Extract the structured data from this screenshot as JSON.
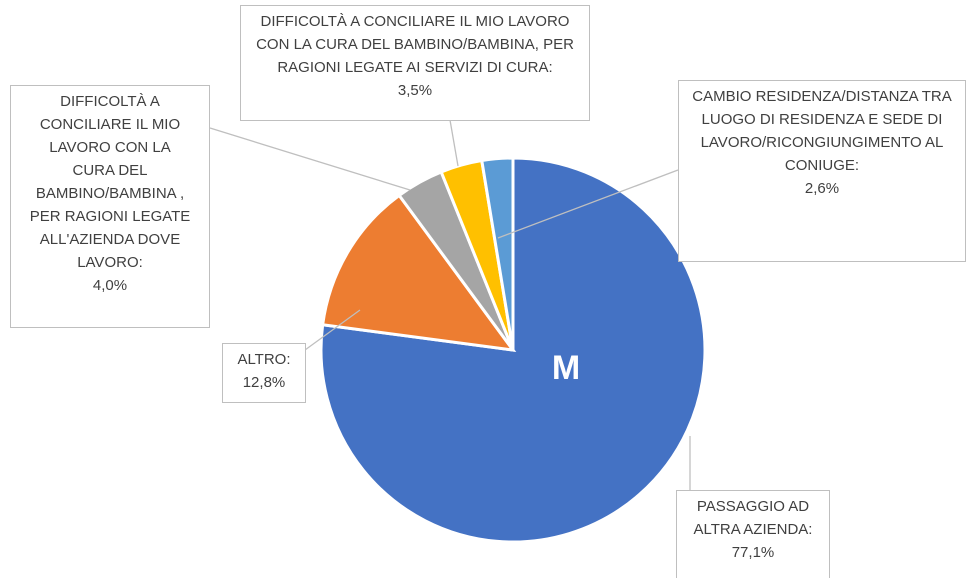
{
  "chart_data": {
    "type": "pie",
    "annotation": "M",
    "categories": [
      "PASSAGGIO AD ALTRA AZIENDA:",
      "ALTRO:",
      "DIFFICOLTÀ A CONCILIARE IL MIO LAVORO CON LA CURA DEL BAMBINO/BAMBINA , PER RAGIONI LEGATE ALL'AZIENDA DOVE LAVORO:",
      "DIFFICOLTÀ A CONCILIARE IL MIO LAVORO CON LA CURA DEL BAMBINO/BAMBINA, PER RAGIONI LEGATE AI SERVIZI DI CURA:",
      "CAMBIO RESIDENZA/DISTANZA TRA LUOGO DI RESIDENZA E SEDE DI LAVORO/RICONGIUNGIMENTO AL CONIUGE:"
    ],
    "values": [
      77.1,
      12.8,
      4.0,
      3.5,
      2.6
    ],
    "value_labels": [
      "77,1%",
      "12,8%",
      "4,0%",
      "3,5%",
      "2,6%"
    ],
    "colors": [
      "#4472c4",
      "#ed7d31",
      "#a5a5a5",
      "#ffc000",
      "#5b9bd5"
    ]
  }
}
